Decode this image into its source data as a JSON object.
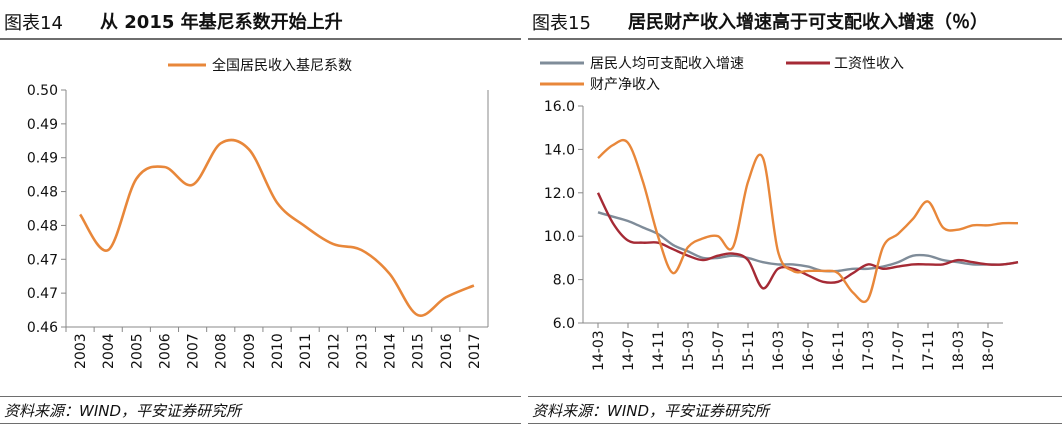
{
  "colors": {
    "gini": "#E8873A",
    "income": "#7F8C99",
    "wage": "#A52A35",
    "property": "#E8873A",
    "frame": "#888888"
  },
  "left": {
    "fig_label": "图表14",
    "title": "从 2015 年基尼系数开始上升",
    "source": "资料来源：WIND，平安证券研究所"
  },
  "right": {
    "fig_label": "图表15",
    "title": "居民财产收入增速高于可支配收入增速（％）",
    "source": "资料来源：WIND，平安证券研究所"
  },
  "chart_data": [
    {
      "type": "line",
      "title": "从 2015 年基尼系数开始上升",
      "categories": [
        "2003",
        "2004",
        "2005",
        "2006",
        "2007",
        "2008",
        "2009",
        "2010",
        "2011",
        "2012",
        "2013",
        "2014",
        "2015",
        "2016",
        "2017"
      ],
      "y_tick_labels": [
        "0.50",
        "0.49",
        "0.49",
        "0.48",
        "0.48",
        "0.47",
        "0.47",
        "0.46"
      ],
      "ylim": [
        0.46,
        0.5
      ],
      "series": [
        {
          "name": "全国居民收入基尼系数",
          "color_key": "gini",
          "values": [
            0.479,
            0.473,
            0.485,
            0.487,
            0.484,
            0.491,
            0.49,
            0.481,
            0.477,
            0.474,
            0.473,
            0.469,
            0.462,
            0.465,
            0.467
          ]
        }
      ]
    },
    {
      "type": "line",
      "title": "居民财产收入增速高于可支配收入增速（％）",
      "categories": [
        "14-03",
        "14-07",
        "14-11",
        "15-03",
        "15-07",
        "15-11",
        "16-03",
        "16-07",
        "16-11",
        "17-03",
        "17-07",
        "17-11",
        "18-03",
        "18-07"
      ],
      "y_tick_labels": [
        "16.0",
        "14.0",
        "12.0",
        "10.0",
        "8.0",
        "6.0"
      ],
      "ylim": [
        6.0,
        16.0
      ],
      "series": [
        {
          "name": "居民人均可支配收入增速",
          "color_key": "income",
          "x": [
            0,
            0.5,
            1,
            1.5,
            2,
            2.5,
            3,
            3.5,
            4,
            4.5,
            5,
            5.5,
            6,
            6.5,
            7,
            7.5,
            8,
            8.5,
            9,
            9.5,
            10,
            10.5,
            11,
            11.5,
            12,
            12.5,
            13,
            13.5,
            14
          ],
          "values": [
            11.1,
            10.9,
            10.7,
            10.4,
            10.1,
            9.6,
            9.3,
            9.0,
            9.0,
            9.1,
            9.0,
            8.8,
            8.7,
            8.7,
            8.6,
            8.4,
            8.4,
            8.5,
            8.5,
            8.6,
            8.8,
            9.1,
            9.1,
            8.9,
            8.8,
            8.7,
            8.7,
            8.7,
            8.8
          ]
        },
        {
          "name": "工资性收入",
          "color_key": "wage",
          "x": [
            0,
            0.5,
            1,
            1.5,
            2,
            2.5,
            3,
            3.5,
            4,
            4.5,
            5,
            5.5,
            6,
            6.5,
            7,
            7.5,
            8,
            8.5,
            9,
            9.5,
            10,
            10.5,
            11,
            11.5,
            12,
            12.5,
            13,
            13.5,
            14
          ],
          "values": [
            12.0,
            10.6,
            9.8,
            9.7,
            9.7,
            9.4,
            9.1,
            8.9,
            9.1,
            9.2,
            8.9,
            7.6,
            8.5,
            8.5,
            8.2,
            7.9,
            7.9,
            8.3,
            8.7,
            8.5,
            8.6,
            8.7,
            8.7,
            8.7,
            8.9,
            8.8,
            8.7,
            8.7,
            8.8
          ]
        },
        {
          "name": "财产净收入",
          "color_key": "property",
          "x": [
            0,
            0.5,
            1,
            1.5,
            2,
            2.5,
            3,
            3.5,
            4,
            4.5,
            5,
            5.5,
            6,
            6.5,
            7,
            7.5,
            8,
            8.5,
            9,
            9.5,
            10,
            10.5,
            11,
            11.5,
            12,
            12.5,
            13,
            13.5,
            14
          ],
          "values": [
            13.6,
            14.2,
            14.3,
            12.5,
            10.0,
            8.3,
            9.5,
            9.9,
            10.0,
            9.5,
            12.5,
            13.6,
            9.3,
            8.4,
            8.4,
            8.4,
            8.3,
            7.4,
            7.1,
            9.5,
            10.1,
            10.8,
            11.6,
            10.4,
            10.3,
            10.5,
            10.5,
            10.6,
            10.6
          ]
        }
      ]
    }
  ]
}
